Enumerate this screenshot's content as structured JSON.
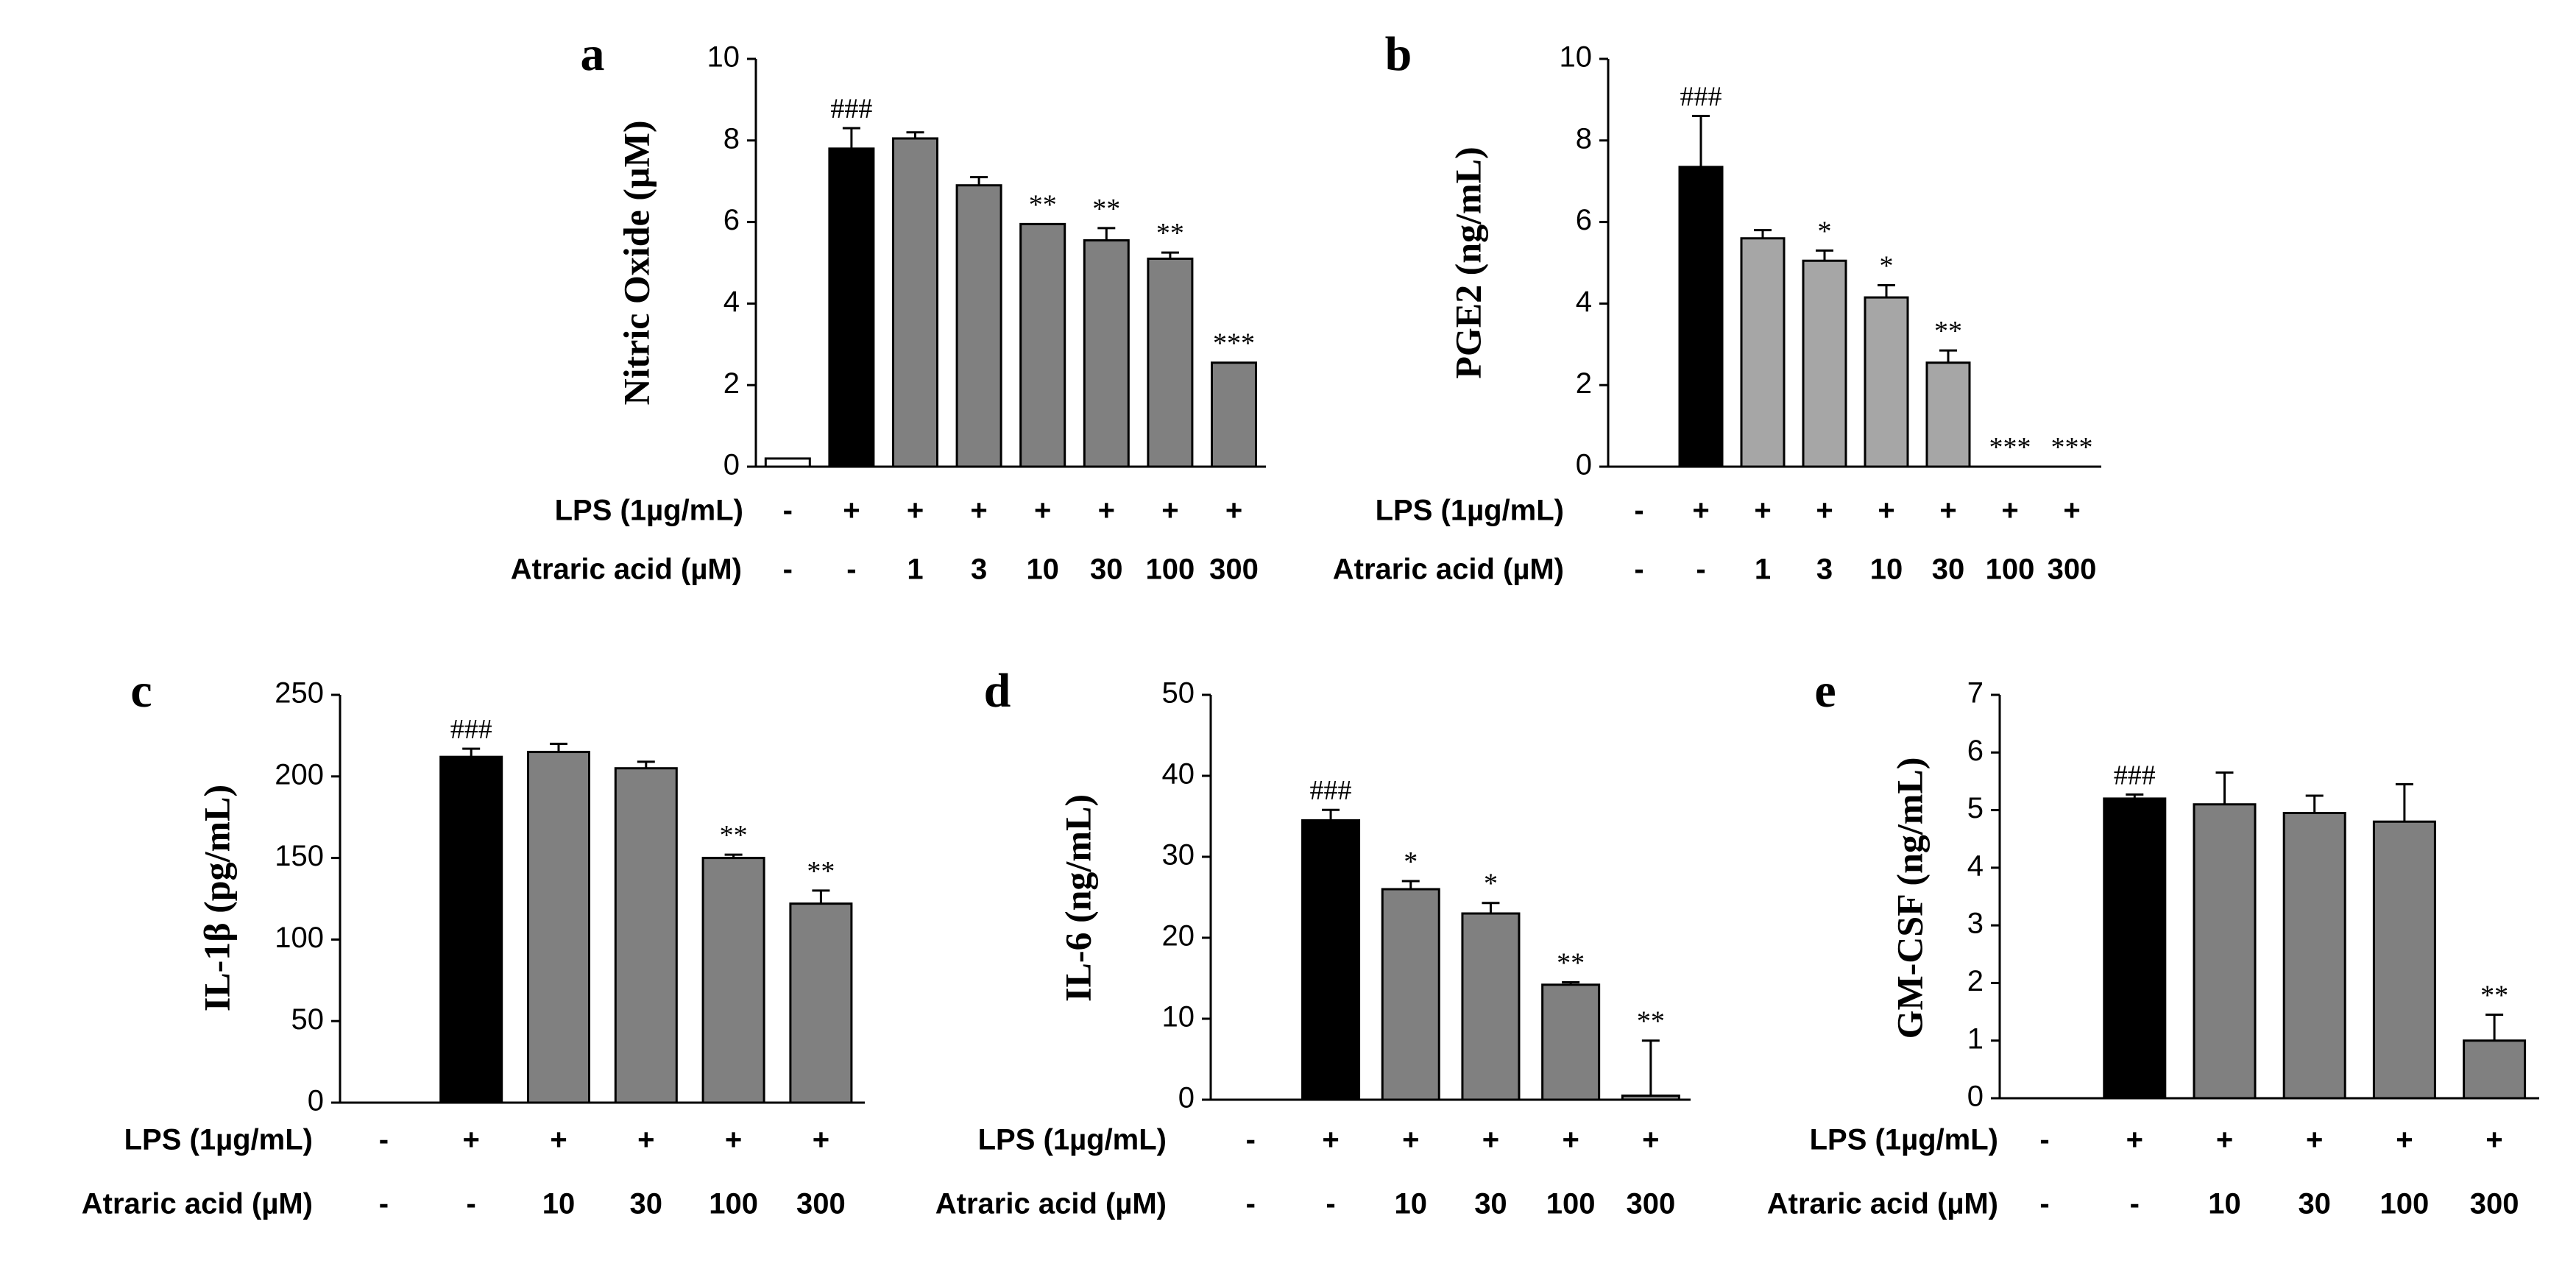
{
  "figure": {
    "row_labels": {
      "lps": "LPS (1µg/mL)",
      "atraric": "Atraric acid (µM)"
    }
  },
  "colors": {
    "control": "#ffffff",
    "lps": "#000000",
    "treat_dark": "#808080",
    "treat_light": "#a6a6a6",
    "axis": "#000000"
  },
  "chart_data": [
    {
      "panel": "a",
      "type": "bar",
      "ylabel": "Nitric  Oxide  (µM)",
      "ylim": [
        0,
        10
      ],
      "yticks": [
        "0",
        "2",
        "4",
        "6",
        "8",
        "10"
      ],
      "lps_row": [
        "-",
        "+",
        "+",
        "+",
        "+",
        "+",
        "+",
        "+"
      ],
      "atraric_row": [
        "-",
        "-",
        "1",
        "3",
        "10",
        "30",
        "100",
        "300"
      ],
      "values": [
        0.2,
        7.8,
        8.05,
        6.9,
        5.95,
        5.55,
        5.1,
        2.55
      ],
      "errors": [
        0,
        0.5,
        0.15,
        0.2,
        0,
        0.3,
        0.15,
        0
      ],
      "annotations": [
        "",
        "###",
        "",
        "",
        "**",
        "**",
        "**",
        "***"
      ],
      "fills": [
        "control",
        "lps",
        "treat_dark",
        "treat_dark",
        "treat_dark",
        "treat_dark",
        "treat_dark",
        "treat_dark"
      ]
    },
    {
      "panel": "b",
      "type": "bar",
      "ylabel": "PGE2 (ng/mL)",
      "ylim": [
        0,
        10
      ],
      "yticks": [
        "0",
        "2",
        "4",
        "6",
        "8",
        "10"
      ],
      "lps_row": [
        "-",
        "+",
        "+",
        "+",
        "+",
        "+",
        "+",
        "+"
      ],
      "atraric_row": [
        "-",
        "-",
        "1",
        "3",
        "10",
        "30",
        "100",
        "300"
      ],
      "values": [
        0,
        7.35,
        5.6,
        5.05,
        4.15,
        2.55,
        0,
        0
      ],
      "errors": [
        0,
        1.25,
        0.2,
        0.25,
        0.3,
        0.3,
        0,
        0
      ],
      "annotations": [
        "",
        "###",
        "",
        "*",
        "*",
        "**",
        "***",
        "***"
      ],
      "fills": [
        "control",
        "lps",
        "treat_light",
        "treat_light",
        "treat_light",
        "treat_light",
        "treat_light",
        "treat_light"
      ]
    },
    {
      "panel": "c",
      "type": "bar",
      "ylabel": "IL-1β (pg/mL)",
      "ylim": [
        0,
        250
      ],
      "yticks": [
        "0",
        "50",
        "100",
        "150",
        "200",
        "250"
      ],
      "lps_row": [
        "-",
        "+",
        "+",
        "+",
        "+",
        "+"
      ],
      "atraric_row": [
        "-",
        "-",
        "10",
        "30",
        "100",
        "300"
      ],
      "values": [
        0,
        212,
        215,
        205,
        150,
        122
      ],
      "errors": [
        0,
        5,
        5,
        4,
        2,
        8
      ],
      "annotations": [
        "",
        "###",
        "",
        "",
        "**",
        "**"
      ],
      "fills": [
        "control",
        "lps",
        "treat_dark",
        "treat_dark",
        "treat_dark",
        "treat_dark"
      ]
    },
    {
      "panel": "d",
      "type": "bar",
      "ylabel": "IL-6 (ng/mL)",
      "ylim": [
        0,
        50
      ],
      "yticks": [
        "0",
        "10",
        "20",
        "30",
        "40",
        "50"
      ],
      "lps_row": [
        "-",
        "+",
        "+",
        "+",
        "+",
        "+"
      ],
      "atraric_row": [
        "-",
        "-",
        "10",
        "30",
        "100",
        "300"
      ],
      "values": [
        0,
        34.5,
        26,
        23,
        14.2,
        0.5
      ],
      "errors": [
        0,
        1.3,
        1,
        1.3,
        0.3,
        6.8
      ],
      "annotations": [
        "",
        "###",
        "*",
        "*",
        "**",
        "**"
      ],
      "fills": [
        "control",
        "lps",
        "treat_dark",
        "treat_dark",
        "treat_dark",
        "treat_dark"
      ]
    },
    {
      "panel": "e",
      "type": "bar",
      "ylabel": "GM-CSF (ng/mL)",
      "ylim": [
        0,
        7
      ],
      "yticks": [
        "0",
        "1",
        "2",
        "3",
        "4",
        "5",
        "6",
        "7"
      ],
      "lps_row": [
        "-",
        "+",
        "+",
        "+",
        "+",
        "+"
      ],
      "atraric_row": [
        "-",
        "-",
        "10",
        "30",
        "100",
        "300"
      ],
      "values": [
        0,
        5.2,
        5.1,
        4.95,
        4.8,
        1.0
      ],
      "errors": [
        0,
        0.07,
        0.55,
        0.3,
        0.65,
        0.45
      ],
      "annotations": [
        "",
        "###",
        "",
        "",
        "",
        "**"
      ],
      "fills": [
        "control",
        "lps",
        "treat_dark",
        "treat_dark",
        "treat_dark",
        "treat_dark"
      ]
    }
  ]
}
